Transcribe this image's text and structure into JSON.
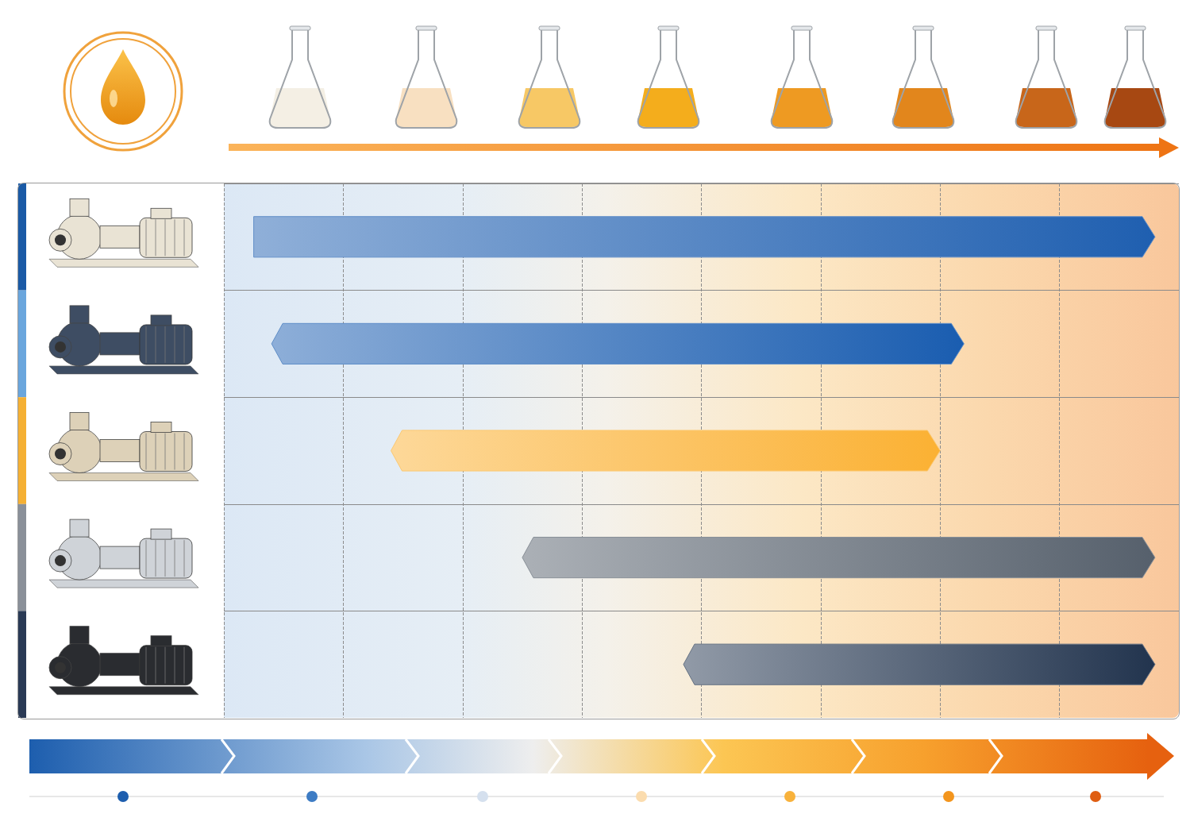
{
  "chart_data": {
    "type": "range_bar",
    "orientation": "horizontal",
    "categories": [
      null,
      null,
      null,
      null,
      null
    ],
    "values": [
      [
        0.25,
        7.8
      ],
      [
        0.4,
        6.2
      ],
      [
        1.4,
        6.0
      ],
      [
        2.5,
        7.8
      ],
      [
        3.85,
        7.8
      ]
    ],
    "colors": [
      "#1f5fb0",
      "#1a5db0",
      "#fbb133",
      "#56606c",
      "#22344e"
    ],
    "xlim": [
      0,
      8
    ],
    "xticks": [
      0,
      1,
      2,
      3,
      4,
      5,
      6,
      7,
      8
    ],
    "grid": true,
    "tick_labels": false
  }
}
